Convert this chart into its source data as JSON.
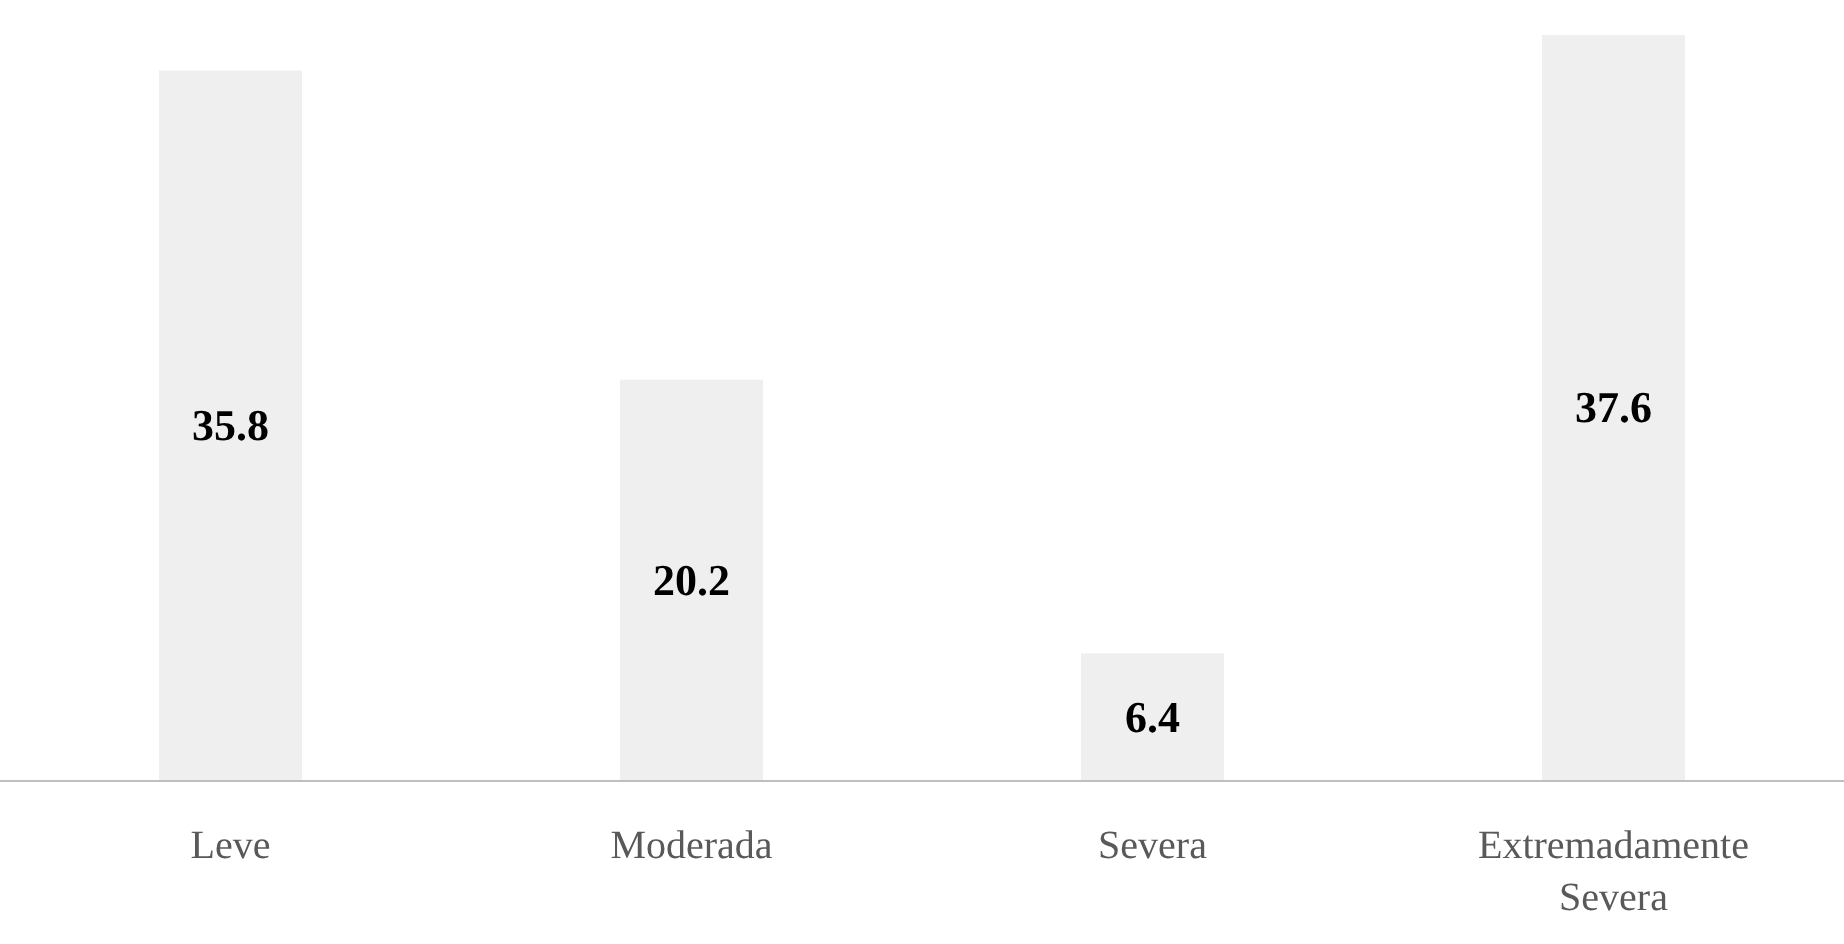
{
  "chart_data": {
    "type": "bar",
    "categories": [
      "Leve",
      "Moderada",
      "Severa",
      "Extremadamente Severa"
    ],
    "values": [
      35.8,
      20.2,
      6.4,
      37.6
    ],
    "color": "#efefef",
    "data_labels": true,
    "legend": false
  }
}
